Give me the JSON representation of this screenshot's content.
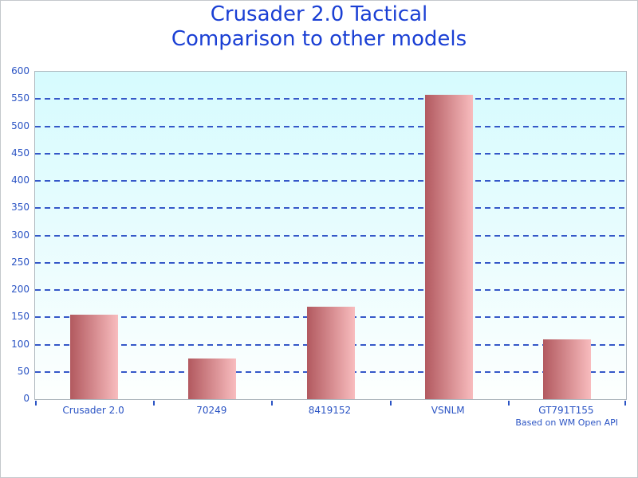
{
  "window": {
    "background": "#ffffff",
    "border_color": "#c4c8cc"
  },
  "chart_data": {
    "type": "bar",
    "title": "Crusader 2.0 Tactical Comparison to other models",
    "title_lines": [
      "Crusader 2.0 Tactical",
      "Comparison to other models"
    ],
    "categories": [
      "Crusader 2.0",
      "70249",
      "8419152",
      "VSNLM",
      "GT791T155"
    ],
    "values": [
      155,
      75,
      170,
      557,
      110
    ],
    "xlabel": "",
    "ylabel": "",
    "ylim": [
      0,
      600
    ],
    "yticks": [
      0,
      50,
      100,
      150,
      200,
      250,
      300,
      350,
      400,
      450,
      500,
      550,
      600
    ],
    "grid": "horizontal-dashed",
    "legend": "none",
    "footnote": "Based on WM Open API",
    "bar_color_left": "#b2595f",
    "bar_color_right": "#f8bcbe",
    "colors": {
      "title_text": "#1a3fd4",
      "axis_text": "#2b54c4",
      "gridline": "#3558c8",
      "tick": "#2b54c4",
      "plot_bg_top": "#d6fbfe",
      "plot_bg_bottom": "#fdfffe",
      "plot_border": "#adb6bd"
    }
  }
}
